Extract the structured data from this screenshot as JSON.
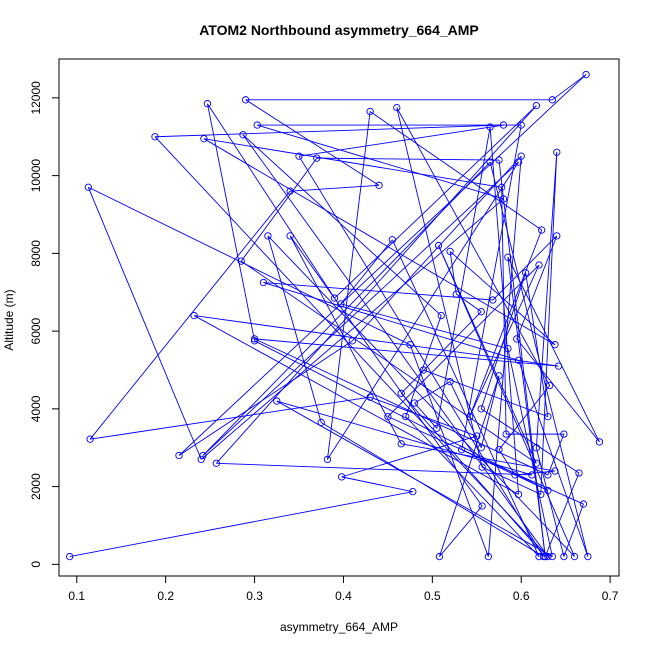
{
  "chart_data": {
    "type": "line",
    "title": "ATOM2 Northbound asymmetry_664_AMP",
    "xlabel": "asymmetry_664_AMP",
    "ylabel": "Altitude (m)",
    "xlim": [
      0.08,
      0.71
    ],
    "ylim": [
      -300,
      13000
    ],
    "x_ticks": [
      0.1,
      0.2,
      0.3,
      0.4,
      0.5,
      0.6,
      0.7
    ],
    "x_tick_labels": [
      "0.1",
      "0.2",
      "0.3",
      "0.4",
      "0.5",
      "0.6",
      "0.7"
    ],
    "y_ticks": [
      0,
      2000,
      4000,
      6000,
      8000,
      10000,
      12000
    ],
    "y_tick_labels": [
      "0",
      "2000",
      "4000",
      "6000",
      "8000",
      "10000",
      "12000"
    ],
    "grid": false,
    "series_color": "#0000ff",
    "series": [
      {
        "points": [
          [
            0.092,
            200
          ],
          [
            0.478,
            1870
          ],
          [
            0.398,
            2250
          ],
          [
            0.55,
            3300
          ],
          [
            0.43,
            4300
          ],
          [
            0.115,
            3220
          ],
          [
            0.34,
            9600
          ],
          [
            0.44,
            9750
          ],
          [
            0.29,
            11950
          ],
          [
            0.635,
            11950
          ],
          [
            0.673,
            12600
          ],
          [
            0.215,
            2800
          ],
          [
            0.41,
            5750
          ],
          [
            0.6,
            10500
          ],
          [
            0.563,
            200
          ],
          [
            0.475,
            5650
          ],
          [
            0.113,
            9700
          ],
          [
            0.24,
            2700
          ],
          [
            0.58,
            9400
          ],
          [
            0.303,
            11300
          ],
          [
            0.6,
            11300
          ],
          [
            0.533,
            2950
          ],
          [
            0.63,
            1900
          ],
          [
            0.3,
            5750
          ],
          [
            0.247,
            11850
          ],
          [
            0.39,
            6850
          ],
          [
            0.617,
            11800
          ],
          [
            0.257,
            2600
          ],
          [
            0.612,
            2300
          ],
          [
            0.325,
            4200
          ],
          [
            0.635,
            200
          ],
          [
            0.585,
            5550
          ],
          [
            0.397,
            6700
          ],
          [
            0.455,
            8350
          ],
          [
            0.62,
            200
          ],
          [
            0.47,
            3800
          ],
          [
            0.51,
            6400
          ],
          [
            0.287,
            11050
          ],
          [
            0.63,
            200
          ],
          [
            0.188,
            11000
          ],
          [
            0.58,
            11300
          ],
          [
            0.35,
            10500
          ],
          [
            0.625,
            200
          ],
          [
            0.375,
            3650
          ],
          [
            0.315,
            8450
          ],
          [
            0.66,
            200
          ],
          [
            0.507,
            8200
          ],
          [
            0.617,
            2600
          ],
          [
            0.285,
            7800
          ],
          [
            0.37,
            10450
          ],
          [
            0.575,
            10400
          ],
          [
            0.627,
            200
          ],
          [
            0.465,
            4400
          ],
          [
            0.555,
            6500
          ],
          [
            0.527,
            6950
          ],
          [
            0.52,
            8050
          ],
          [
            0.638,
            5650
          ],
          [
            0.243,
            10950
          ],
          [
            0.578,
            9700
          ],
          [
            0.583,
            3350
          ],
          [
            0.648,
            3350
          ],
          [
            0.63,
            2300
          ],
          [
            0.3,
            5800
          ],
          [
            0.642,
            5100
          ],
          [
            0.232,
            6400
          ],
          [
            0.597,
            1800
          ],
          [
            0.565,
            11250
          ],
          [
            0.505,
            3500
          ],
          [
            0.48,
            4150
          ],
          [
            0.52,
            4700
          ],
          [
            0.555,
            3000
          ],
          [
            0.575,
            4850
          ],
          [
            0.508,
            200
          ],
          [
            0.556,
            1500
          ],
          [
            0.34,
            8450
          ],
          [
            0.465,
            3100
          ],
          [
            0.638,
            2400
          ],
          [
            0.593,
            2300
          ],
          [
            0.575,
            2950
          ],
          [
            0.632,
            4600
          ],
          [
            0.46,
            11750
          ],
          [
            0.556,
            2500
          ],
          [
            0.622,
            1800
          ],
          [
            0.64,
            10600
          ],
          [
            0.617,
            3000
          ],
          [
            0.648,
            200
          ],
          [
            0.67,
            1550
          ],
          [
            0.45,
            3800
          ],
          [
            0.62,
            7700
          ],
          [
            0.542,
            3800
          ],
          [
            0.623,
            8600
          ],
          [
            0.43,
            11650
          ],
          [
            0.382,
            2700
          ],
          [
            0.597,
            10350
          ],
          [
            0.242,
            2800
          ],
          [
            0.565,
            10350
          ],
          [
            0.675,
            200
          ],
          [
            0.597,
            5250
          ],
          [
            0.31,
            7250
          ],
          [
            0.568,
            6800
          ],
          [
            0.64,
            8450
          ],
          [
            0.595,
            5800
          ],
          [
            0.688,
            3150
          ],
          [
            0.585,
            7900
          ],
          [
            0.627,
            200
          ],
          [
            0.665,
            2350
          ],
          [
            0.555,
            4000
          ],
          [
            0.605,
            7500
          ],
          [
            0.63,
            3800
          ],
          [
            0.49,
            5000
          ]
        ]
      }
    ]
  }
}
